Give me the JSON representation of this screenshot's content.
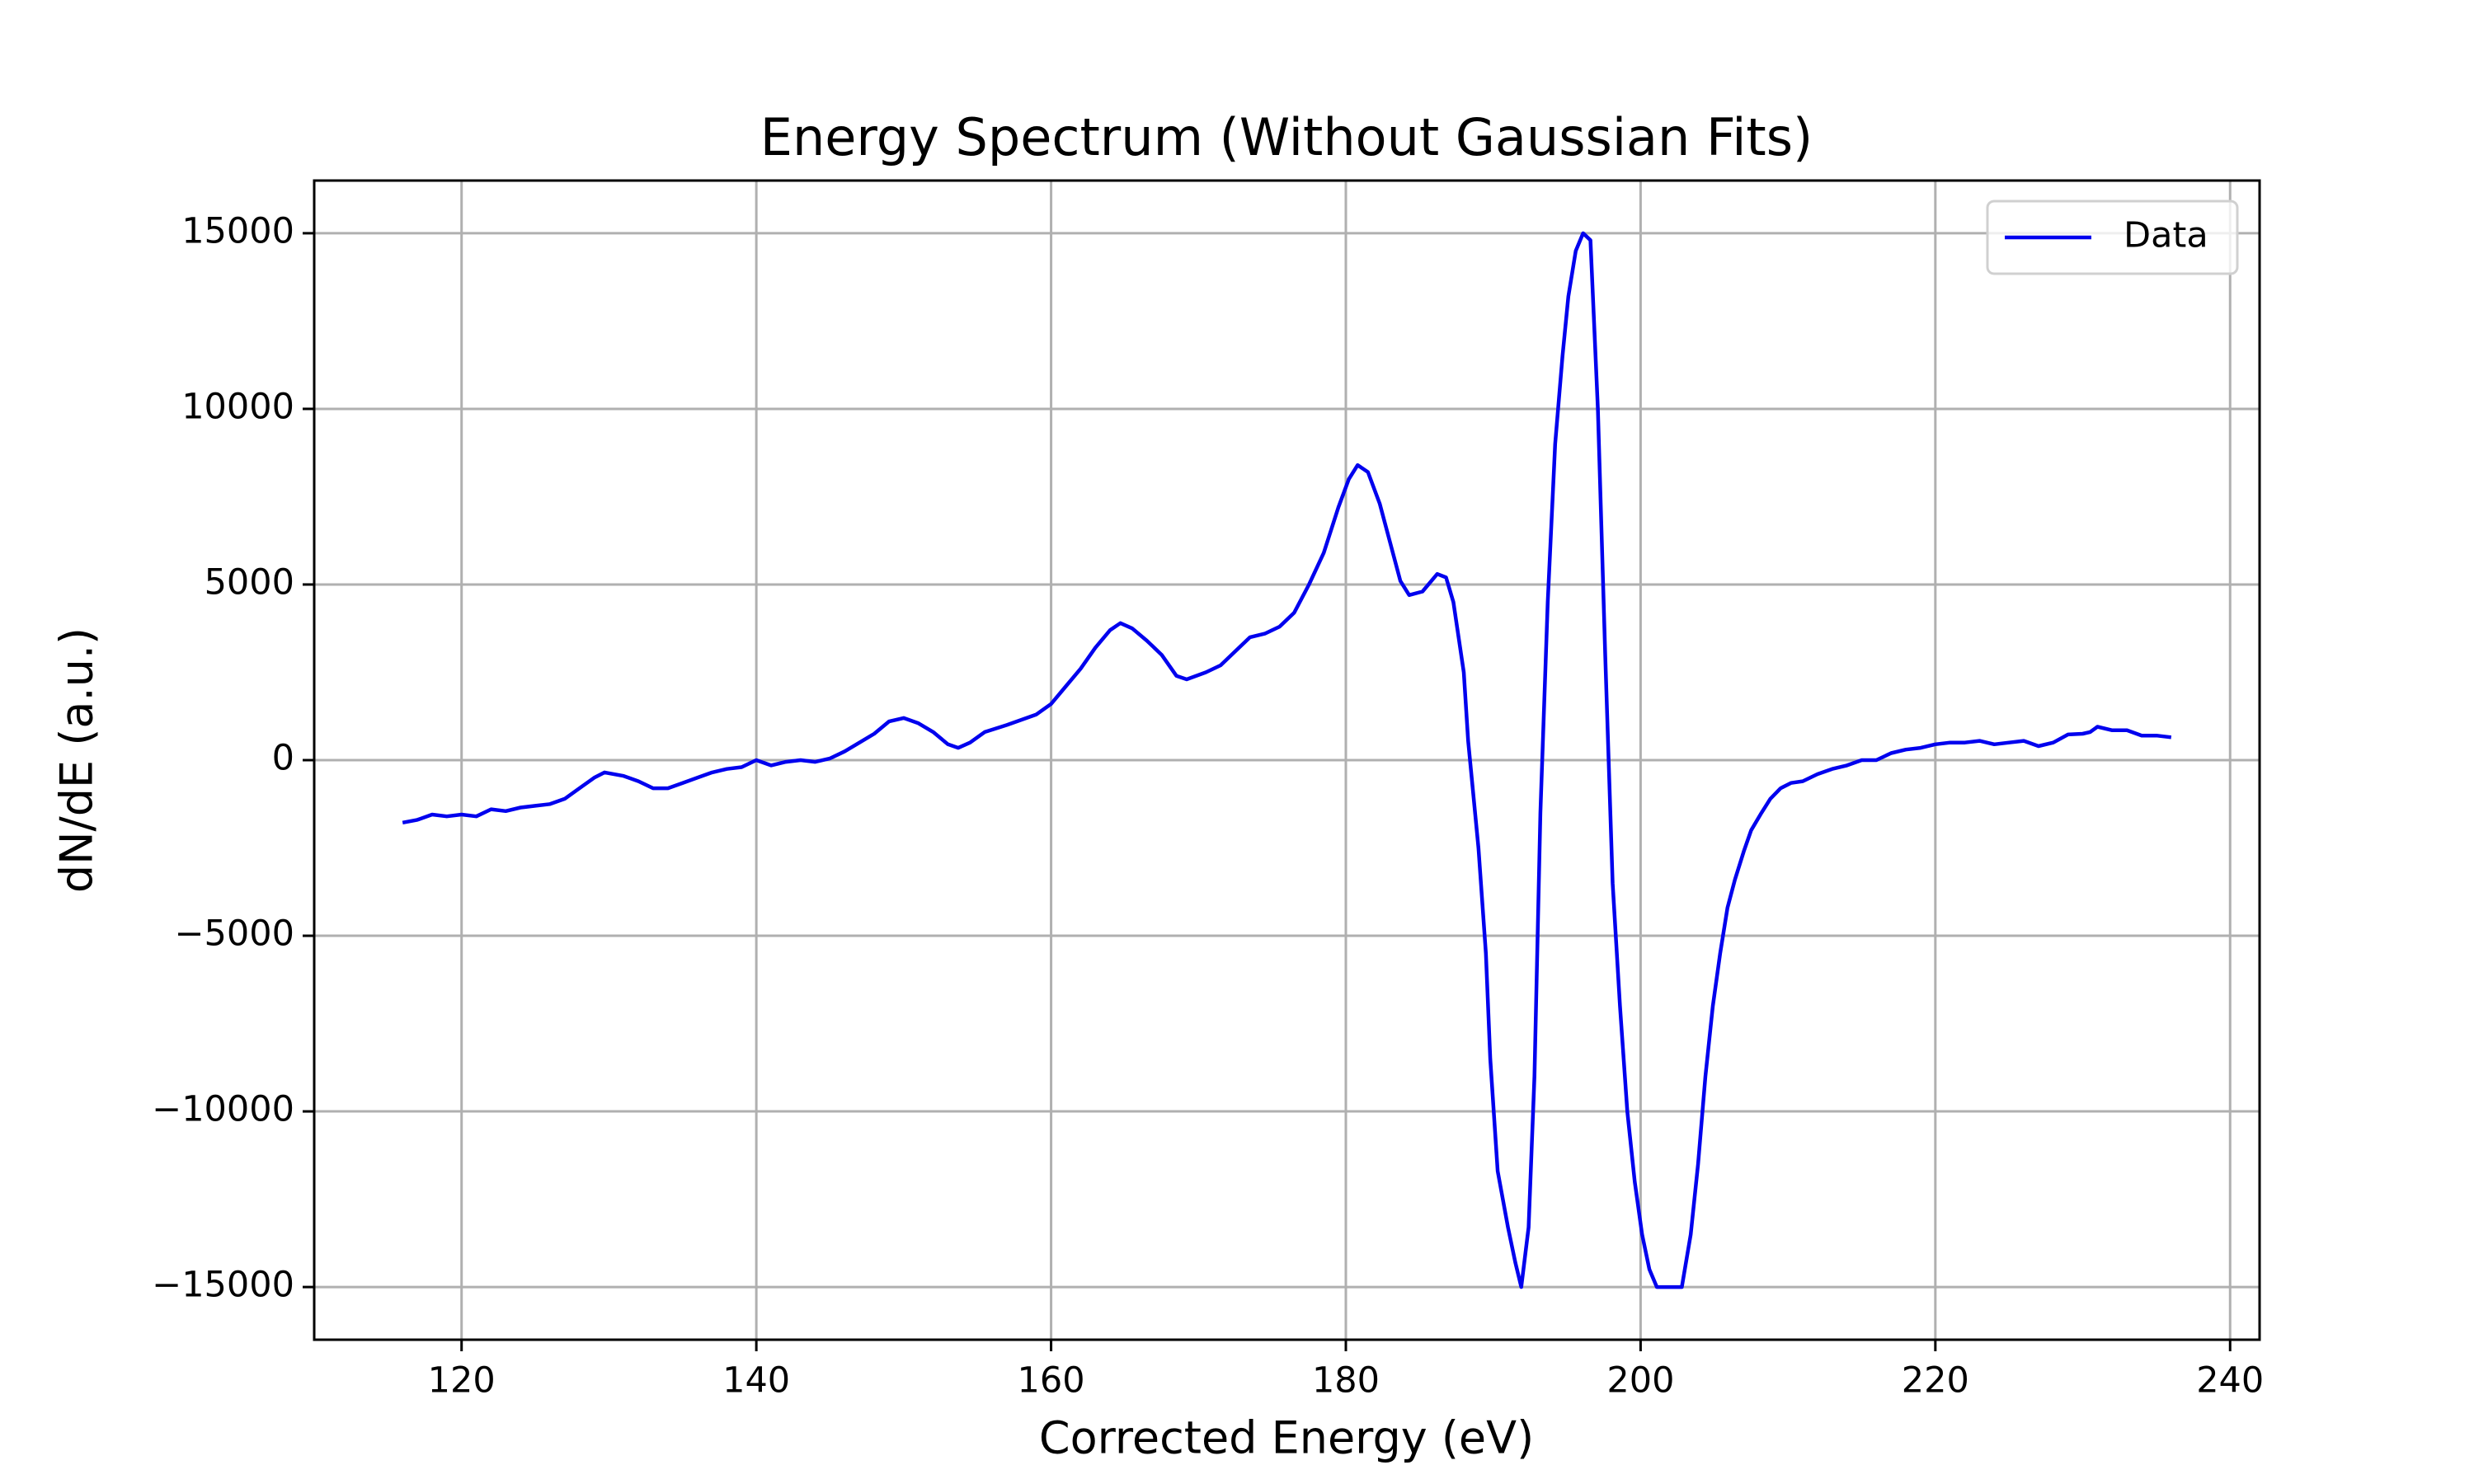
{
  "chart_data": {
    "type": "line",
    "title": "Energy Spectrum (Without Gaussian Fits)",
    "x_label": "Corrected Energy (eV)",
    "y_label": "dN/dE (a.u.)",
    "x": [
      116,
      117,
      118,
      119,
      120,
      121,
      122,
      123,
      124,
      125,
      126,
      127,
      128,
      129,
      129.7,
      131,
      132,
      133,
      134,
      135,
      136,
      137,
      138,
      139,
      140,
      141,
      142,
      143,
      144,
      145,
      146,
      147,
      148,
      149,
      150,
      151,
      152,
      153,
      153.7,
      154.5,
      155.5,
      157,
      158,
      159,
      160,
      161,
      162,
      163,
      164,
      164.7,
      165.5,
      166.5,
      167.5,
      168.5,
      169.2,
      170.5,
      171.5,
      172.5,
      173.5,
      174.5,
      175.5,
      176.5,
      177.5,
      178.5,
      179.5,
      180.2,
      180.8,
      181.5,
      182.3,
      183,
      183.7,
      184.3,
      185.2,
      186.2,
      186.8,
      187.3,
      188,
      188.3,
      189,
      189.5,
      189.8,
      190.3,
      191,
      191.5,
      191.9,
      192.4,
      192.8,
      193.2,
      193.7,
      194.2,
      194.7,
      195.1,
      195.6,
      196.1,
      196.6,
      197.1,
      197.6,
      198.1,
      198.6,
      199.1,
      199.6,
      200.1,
      200.6,
      201.1,
      202.8,
      203.4,
      203.9,
      204.4,
      204.9,
      205.4,
      205.9,
      206.4,
      207,
      207.5,
      208.2,
      208.8,
      209.5,
      210.2,
      211,
      212,
      213,
      214,
      215,
      216,
      217,
      218,
      219,
      220,
      221,
      222,
      223,
      224,
      225,
      226,
      227,
      228,
      229,
      230,
      230.5,
      231,
      232,
      233,
      234,
      235,
      236
    ],
    "series": [
      {
        "name": "Data",
        "color": "#0000ee",
        "values": [
          -1780,
          -1700,
          -1550,
          -1600,
          -1550,
          -1600,
          -1400,
          -1450,
          -1350,
          -1300,
          -1250,
          -1100,
          -800,
          -500,
          -350,
          -450,
          -600,
          -800,
          -800,
          -650,
          -500,
          -350,
          -250,
          -200,
          0,
          -150,
          -50,
          0,
          -50,
          50,
          250,
          500,
          750,
          1100,
          1200,
          1050,
          800,
          450,
          350,
          500,
          800,
          1000,
          1150,
          1300,
          1600,
          2100,
          2600,
          3200,
          3700,
          3900,
          3750,
          3400,
          3000,
          2400,
          2300,
          2500,
          2700,
          3100,
          3500,
          3600,
          3800,
          4200,
          5000,
          5900,
          7200,
          8000,
          8400,
          8200,
          7300,
          6200,
          5100,
          4700,
          4800,
          5300,
          5200,
          4500,
          2500,
          550,
          -2500,
          -5500,
          -8500,
          -11700,
          -13300,
          -14300,
          -15000,
          -13300,
          -9000,
          -1500,
          4500,
          9000,
          11500,
          13200,
          14500,
          15000,
          14800,
          10000,
          3000,
          -3500,
          -7000,
          -10000,
          -12000,
          -13500,
          -14500,
          -15000,
          -15000,
          -13500,
          -11500,
          -9000,
          -7000,
          -5500,
          -4200,
          -3400,
          -2600,
          -2000,
          -1500,
          -1100,
          -800,
          -650,
          -600,
          -400,
          -250,
          -150,
          0,
          0,
          200,
          300,
          350,
          450,
          500,
          500,
          550,
          450,
          500,
          550,
          400,
          500,
          730,
          750,
          800,
          950,
          850,
          850,
          700,
          700,
          650
        ]
      }
    ],
    "xlim": [
      110,
      242
    ],
    "ylim": [
      -16500,
      16500
    ],
    "xticks": [
      120,
      140,
      160,
      180,
      200,
      220,
      240
    ],
    "yticks": [
      {
        "value": -15000,
        "label": "−15000"
      },
      {
        "value": -10000,
        "label": "−10000"
      },
      {
        "value": -5000,
        "label": "−5000"
      },
      0,
      5000,
      10000,
      15000
    ],
    "grid": true,
    "legend": "upper right"
  }
}
